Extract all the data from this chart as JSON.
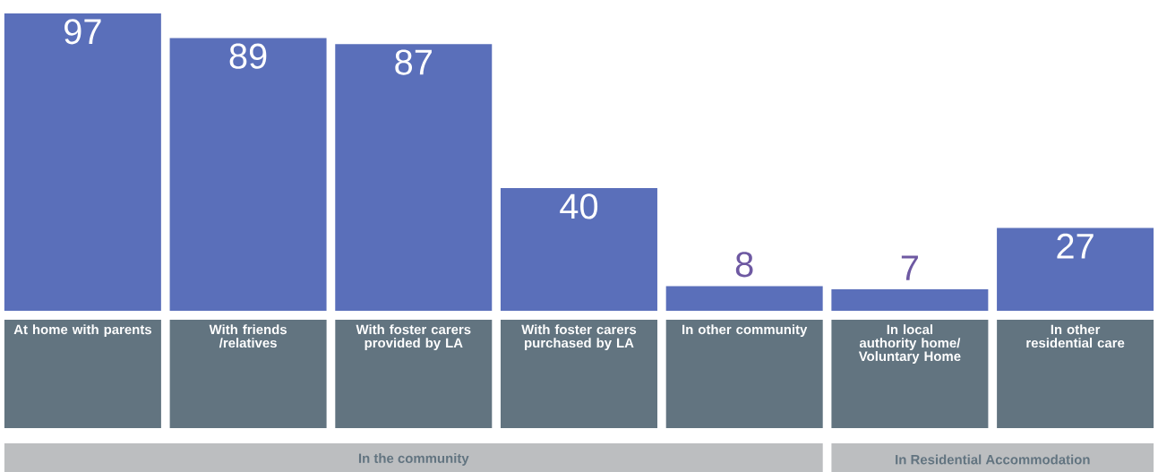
{
  "chart_data": {
    "type": "bar",
    "categories": [
      "At home with parents",
      "With friends /relatives",
      "With foster carers provided by LA",
      "With foster carers purchased by LA",
      "In other community",
      "In local authority home/ Voluntary Home",
      "In other residential care"
    ],
    "values": [
      97,
      89,
      87,
      40,
      8,
      7,
      27
    ],
    "color": "#5a6fba",
    "data_labels": true,
    "annotations": [
      "In the community",
      "In Residential Accommodation"
    ]
  }
}
